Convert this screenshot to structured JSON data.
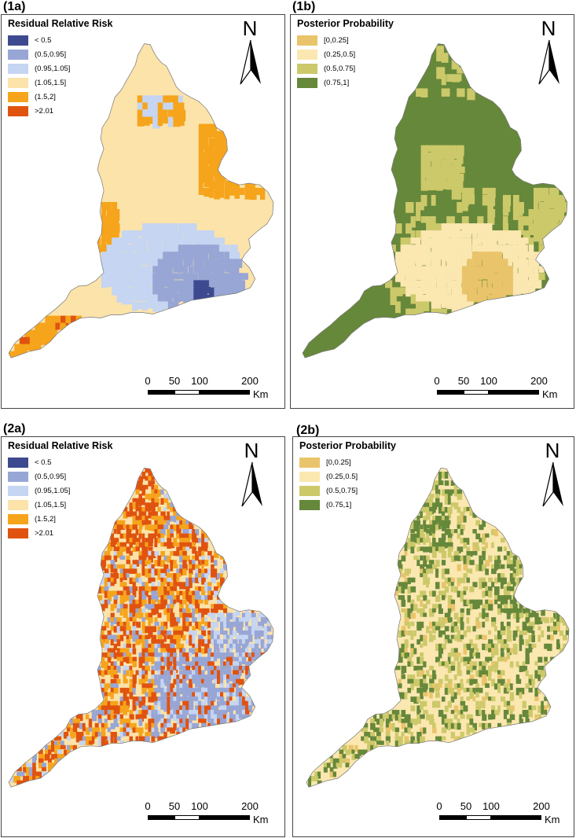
{
  "rr_colors": {
    "lt05": "#3e4a8f",
    "b05_095": "#98a6d6",
    "b095_105": "#c5d5f2",
    "b105_15": "#fbe3aa",
    "b15_2": "#f6a41b",
    "gt201": "#e0530f"
  },
  "pp_colors": {
    "b0_025": "#e9c46a",
    "b025_05": "#fbe7b0",
    "b05_075": "#ccc96a",
    "b075_1": "#66883a"
  },
  "rr_legend": {
    "title": "Residual Relative Risk",
    "items": [
      {
        "label": "< 0.5",
        "color": "#3e4a8f"
      },
      {
        "label": "(0.5,0.95]",
        "color": "#98a6d6"
      },
      {
        "label": "(0.95,1.05]",
        "color": "#c5d5f2"
      },
      {
        "label": "(1.05,1.5]",
        "color": "#fbe3aa"
      },
      {
        "label": "(1.5,2]",
        "color": "#f6a41b"
      },
      {
        "label": ">2.01",
        "color": "#e0530f"
      }
    ]
  },
  "pp_legend": {
    "title": "Posterior Probability",
    "items": [
      {
        "label": "[0,0.25]",
        "color": "#e9c46a"
      },
      {
        "label": "(0.25,0.5]",
        "color": "#fbe7b0"
      },
      {
        "label": "(0.5,0.75]",
        "color": "#ccc96a"
      },
      {
        "label": "(0.75,1]",
        "color": "#66883a"
      }
    ]
  },
  "north_label": "N",
  "scale": {
    "ticks": [
      "0",
      "50",
      "100",
      "200"
    ],
    "unit": "Km"
  },
  "panels": [
    {
      "label": "(1a)",
      "legend": "rr",
      "background": "#fbe3aa",
      "mode": "smooth"
    },
    {
      "label": "(1b)",
      "legend": "pp",
      "background": "#66883a",
      "mode": "smooth"
    },
    {
      "label": "(2a)",
      "legend": "rr",
      "background": "#fbe3aa",
      "mode": "patchy"
    },
    {
      "label": "(2b)",
      "legend": "pp",
      "background": "#fbe7b0",
      "mode": "patchy"
    }
  ]
}
